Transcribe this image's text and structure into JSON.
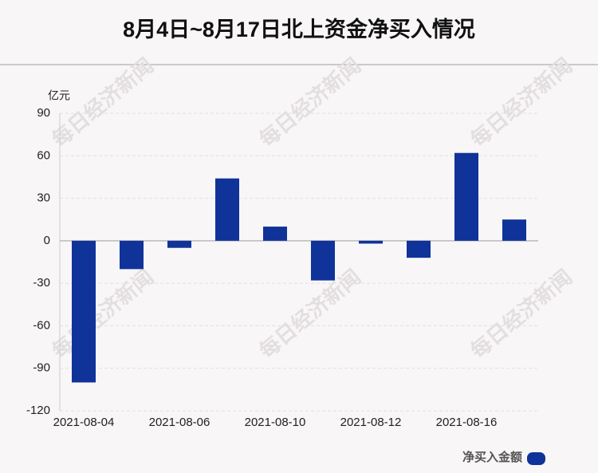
{
  "chart_data": {
    "type": "bar",
    "title": "8月4日~8月17日北上资金净买入情况",
    "y_unit": "亿元",
    "watermark": "每日经济新闻",
    "categories": [
      "2021-08-04",
      null,
      "2021-08-06",
      null,
      "2021-08-10",
      null,
      "2021-08-12",
      null,
      "2021-08-16",
      null
    ],
    "series": [
      {
        "name": "净买入金额",
        "color": "#0f3399",
        "values": [
          -100,
          -20,
          -5,
          44,
          10,
          -28,
          -2,
          -12,
          62,
          15
        ]
      }
    ],
    "ylim": [
      -120,
      90
    ],
    "yticks": [
      -120,
      -90,
      -60,
      -30,
      0,
      30,
      60,
      90
    ],
    "grid": true
  }
}
